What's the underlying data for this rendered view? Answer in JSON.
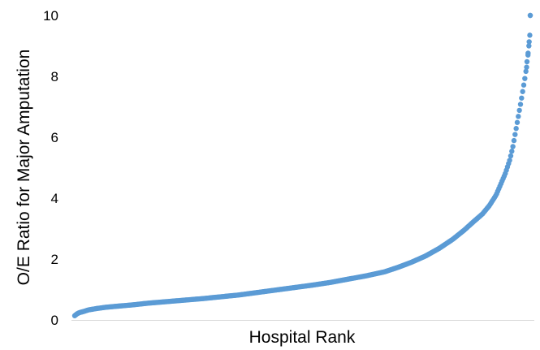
{
  "chart_data": {
    "type": "scatter",
    "title": "",
    "xlabel": "Hospital Rank",
    "ylabel": "O/E Ratio for Major Amputation",
    "ylim": [
      0,
      10
    ],
    "yticks": [
      0,
      2,
      4,
      6,
      8,
      10
    ],
    "ytick_labels": [
      "0",
      "2",
      "4",
      "6",
      "8",
      "10"
    ],
    "xlim": [
      0,
      1
    ],
    "grid": false,
    "legend": "none",
    "marker_color": "#5b9bd5",
    "series": [
      {
        "x": [
          0.0,
          0.005,
          0.01,
          0.02,
          0.03,
          0.05,
          0.07,
          0.1,
          0.13,
          0.16,
          0.2,
          0.24,
          0.28,
          0.32,
          0.36,
          0.4,
          0.44,
          0.48,
          0.52,
          0.56,
          0.6,
          0.64,
          0.68,
          0.71,
          0.74,
          0.77,
          0.8,
          0.83,
          0.855,
          0.875,
          0.895,
          0.91,
          0.925,
          0.935,
          0.945,
          0.955,
          0.962,
          0.968,
          0.974,
          0.98,
          0.985,
          0.99,
          0.993,
          0.996,
          0.998,
          0.999,
          1.0
        ],
        "y": [
          0.14,
          0.2,
          0.24,
          0.28,
          0.33,
          0.38,
          0.42,
          0.46,
          0.5,
          0.55,
          0.6,
          0.65,
          0.7,
          0.76,
          0.82,
          0.9,
          0.98,
          1.06,
          1.14,
          1.23,
          1.34,
          1.45,
          1.58,
          1.73,
          1.9,
          2.1,
          2.35,
          2.65,
          2.95,
          3.22,
          3.48,
          3.75,
          4.1,
          4.45,
          4.8,
          5.25,
          5.7,
          6.2,
          6.7,
          7.2,
          7.65,
          8.1,
          8.5,
          8.85,
          9.2,
          9.45,
          10.0
        ]
      }
    ]
  }
}
